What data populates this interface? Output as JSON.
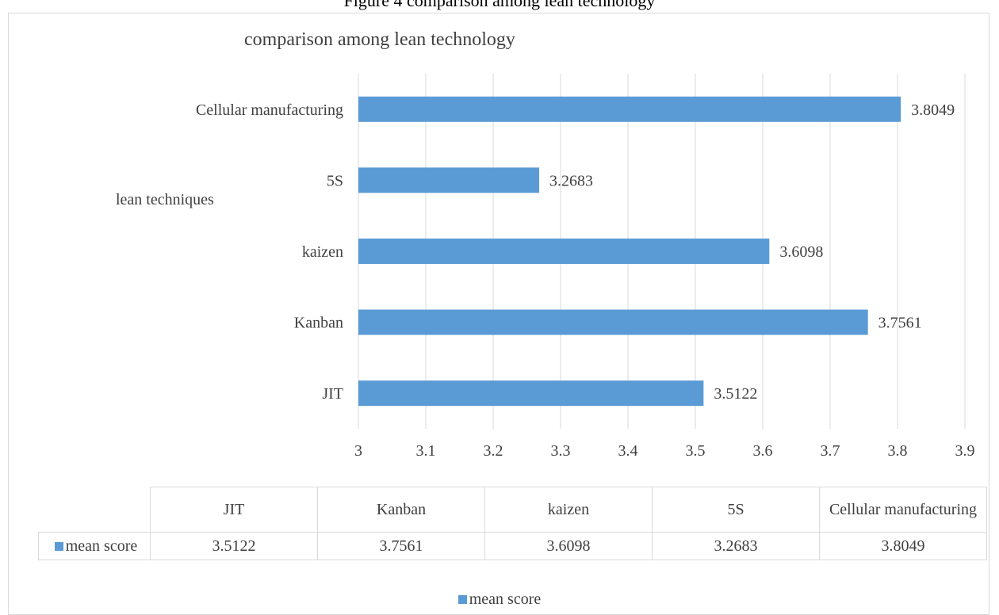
{
  "page_caption": "Figure 4 comparison among lean technology",
  "chart_data": {
    "type": "bar",
    "orientation": "horizontal",
    "title": "comparison among lean technology",
    "ylabel": "lean techniques",
    "xlabel": "",
    "categories": [
      "JIT",
      "Kanban",
      "kaizen",
      "5S",
      "Cellular manufacturing"
    ],
    "series": [
      {
        "name": "mean score",
        "values": [
          3.5122,
          3.7561,
          3.6098,
          3.2683,
          3.8049
        ],
        "color": "#5b9bd5"
      }
    ],
    "data_labels": [
      "3.5122",
      "3.7561",
      "3.6098",
      "3.2683",
      "3.8049"
    ],
    "xlim": [
      3,
      3.9
    ],
    "ticks": [
      "3",
      "3.1",
      "3.2",
      "3.3",
      "3.4",
      "3.5",
      "3.6",
      "3.7",
      "3.8",
      "3.9"
    ],
    "grid": true,
    "legend": "bottom",
    "data_table": {
      "headers": [
        "JIT",
        "Kanban",
        "kaizen",
        "5S",
        "Cellular manufacturing"
      ],
      "series_label": "mean score",
      "values": [
        "3.5122",
        "3.7561",
        "3.6098",
        "3.2683",
        "3.8049"
      ]
    },
    "legend_label": "mean score"
  }
}
